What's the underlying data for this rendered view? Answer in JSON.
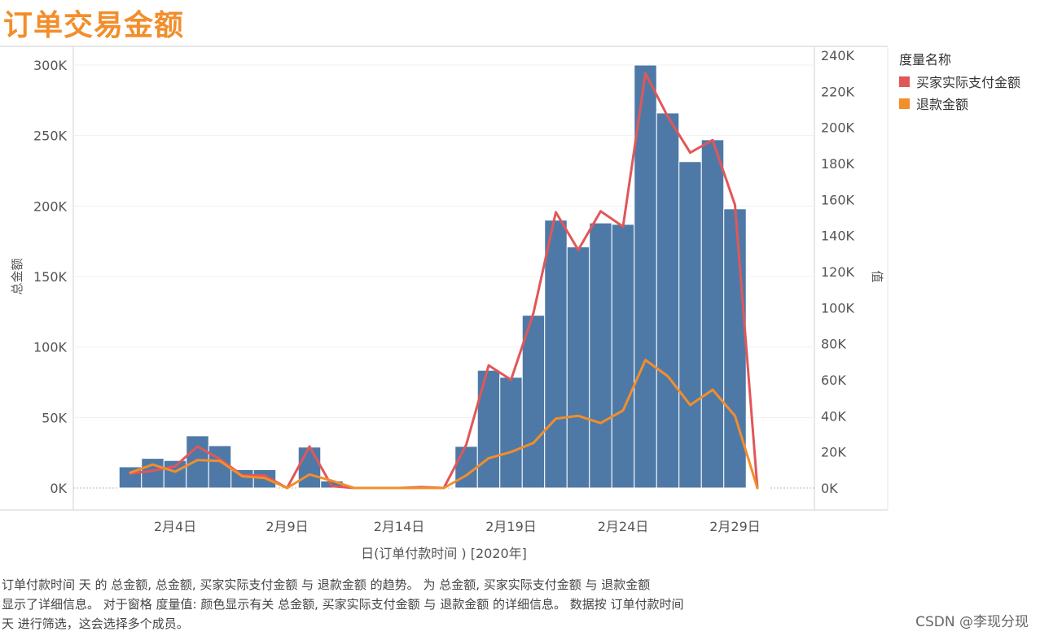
{
  "title": "订单交易金额",
  "chart_data": {
    "type": "bar+line (dual axis)",
    "title": "订单交易金额",
    "xlabel": "日(订单付款时间 ) [2020年]",
    "ylabel_left": "总金额",
    "ylabel_right": "值",
    "x_ticks": [
      "2月4日",
      "2月9日",
      "2月14日",
      "2月19日",
      "2月24日",
      "2月29日"
    ],
    "x_tick_days": [
      4,
      9,
      14,
      19,
      24,
      29
    ],
    "x_range": [
      0,
      32.4
    ],
    "y_left_range": [
      0,
      300000
    ],
    "y_left_ticks": [
      "0K",
      "50K",
      "100K",
      "150K",
      "200K",
      "250K",
      "300K"
    ],
    "y_right_range": [
      0,
      240000
    ],
    "y_right_ticks": [
      "0K",
      "20K",
      "40K",
      "60K",
      "80K",
      "100K",
      "120K",
      "140K",
      "160K",
      "180K",
      "200K",
      "220K",
      "240K"
    ],
    "bar_series": {
      "name": "总金额",
      "color": "#4e79a7",
      "points": [
        {
          "day": 2,
          "value": 15000
        },
        {
          "day": 3,
          "value": 21000
        },
        {
          "day": 4,
          "value": 19500
        },
        {
          "day": 5,
          "value": 37000
        },
        {
          "day": 6,
          "value": 30000
        },
        {
          "day": 7,
          "value": 13000
        },
        {
          "day": 8,
          "value": 13000
        },
        {
          "day": 10,
          "value": 29000
        },
        {
          "day": 11,
          "value": 5000
        },
        {
          "day": 17,
          "value": 29500
        },
        {
          "day": 18,
          "value": 83500
        },
        {
          "day": 19,
          "value": 78500
        },
        {
          "day": 20,
          "value": 122500
        },
        {
          "day": 21,
          "value": 190000
        },
        {
          "day": 22,
          "value": 171000
        },
        {
          "day": 23,
          "value": 188000
        },
        {
          "day": 24,
          "value": 187000
        },
        {
          "day": 25,
          "value": 300000
        },
        {
          "day": 26,
          "value": 266000
        },
        {
          "day": 27,
          "value": 231500
        },
        {
          "day": 28,
          "value": 247000
        },
        {
          "day": 29,
          "value": 198000
        },
        {
          "day": 30,
          "value": 500
        }
      ]
    },
    "line_series": [
      {
        "name": "买家实际支付金额",
        "color": "#e15759",
        "points": [
          {
            "day": 2,
            "value": 8000
          },
          {
            "day": 3,
            "value": 9500
          },
          {
            "day": 4,
            "value": 12000
          },
          {
            "day": 5,
            "value": 23000
          },
          {
            "day": 6,
            "value": 16000
          },
          {
            "day": 7,
            "value": 7000
          },
          {
            "day": 8,
            "value": 7000
          },
          {
            "day": 9,
            "value": 0
          },
          {
            "day": 10,
            "value": 23000
          },
          {
            "day": 11,
            "value": 1000
          },
          {
            "day": 12,
            "value": 0
          },
          {
            "day": 13,
            "value": 0
          },
          {
            "day": 14,
            "value": 0
          },
          {
            "day": 15,
            "value": 500
          },
          {
            "day": 16,
            "value": 0
          },
          {
            "day": 17,
            "value": 24000
          },
          {
            "day": 18,
            "value": 68000
          },
          {
            "day": 19,
            "value": 60000
          },
          {
            "day": 20,
            "value": 97000
          },
          {
            "day": 21,
            "value": 153000
          },
          {
            "day": 22,
            "value": 132000
          },
          {
            "day": 23,
            "value": 153500
          },
          {
            "day": 24,
            "value": 145000
          },
          {
            "day": 25,
            "value": 230000
          },
          {
            "day": 26,
            "value": 206000
          },
          {
            "day": 27,
            "value": 186000
          },
          {
            "day": 28,
            "value": 193000
          },
          {
            "day": 29,
            "value": 157000
          },
          {
            "day": 30,
            "value": 0
          }
        ]
      },
      {
        "name": "退款金额",
        "color": "#f28e2b",
        "points": [
          {
            "day": 2,
            "value": 8500
          },
          {
            "day": 3,
            "value": 13000
          },
          {
            "day": 4,
            "value": 9000
          },
          {
            "day": 5,
            "value": 15500
          },
          {
            "day": 6,
            "value": 15000
          },
          {
            "day": 7,
            "value": 6500
          },
          {
            "day": 8,
            "value": 5500
          },
          {
            "day": 9,
            "value": 0
          },
          {
            "day": 10,
            "value": 7500
          },
          {
            "day": 11,
            "value": 4000
          },
          {
            "day": 12,
            "value": 0
          },
          {
            "day": 13,
            "value": 0
          },
          {
            "day": 14,
            "value": 0
          },
          {
            "day": 15,
            "value": 0
          },
          {
            "day": 16,
            "value": 0
          },
          {
            "day": 17,
            "value": 7000
          },
          {
            "day": 18,
            "value": 16500
          },
          {
            "day": 19,
            "value": 20000
          },
          {
            "day": 20,
            "value": 25000
          },
          {
            "day": 21,
            "value": 38500
          },
          {
            "day": 22,
            "value": 40000
          },
          {
            "day": 23,
            "value": 36000
          },
          {
            "day": 24,
            "value": 43000
          },
          {
            "day": 25,
            "value": 71000
          },
          {
            "day": 26,
            "value": 62000
          },
          {
            "day": 27,
            "value": 46000
          },
          {
            "day": 28,
            "value": 54500
          },
          {
            "day": 29,
            "value": 40000
          },
          {
            "day": 30,
            "value": 0
          }
        ]
      }
    ],
    "legend": {
      "title": "度量名称",
      "items": [
        {
          "label": "买家实际支付金额",
          "color": "#e15759"
        },
        {
          "label": "退款金额",
          "color": "#f28e2b"
        }
      ],
      "position": "right"
    }
  },
  "caption": [
    "订单付款时间 天 的 总金额, 总金额, 买家实际支付金额 与 退款金额 的趋势。 为 总金额, 买家实际支付金额 与 退款金额",
    "显示了详细信息。 对于窗格 度量值: 颜色显示有关 总金额, 买家实际支付金额 与 退款金额 的详细信息。 数据按 订单付款时间",
    "天 进行筛选，这会选择多个成员。"
  ],
  "watermark": "CSDN @李现分现"
}
